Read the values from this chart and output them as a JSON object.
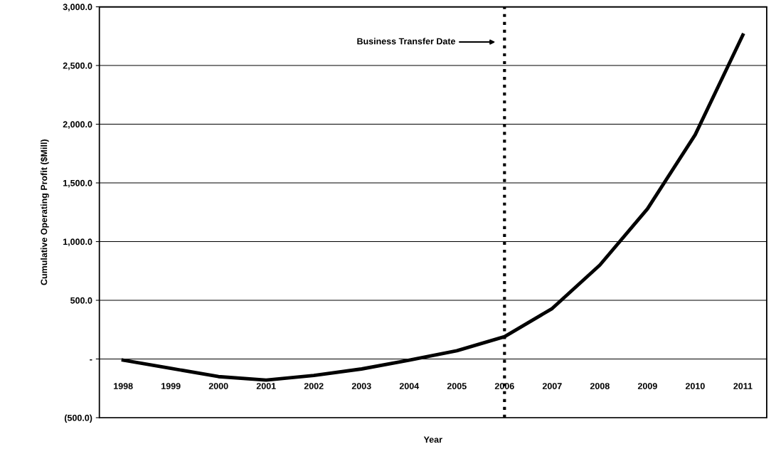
{
  "chart_data": {
    "type": "line",
    "xlabel": "Year",
    "ylabel": "Cumulative Operating Profit ($Mill)",
    "categories": [
      "1998",
      "1999",
      "2000",
      "2001",
      "2002",
      "2003",
      "2004",
      "2005",
      "2006",
      "2007",
      "2008",
      "2009",
      "2010",
      "2011"
    ],
    "series": [
      {
        "color": "#000000",
        "values": [
          -10,
          -80,
          -150,
          -180,
          -140,
          -85,
          -10,
          70,
          190,
          430,
          800,
          1280,
          1910,
          2760
        ]
      }
    ],
    "ylim": [
      -500,
      3000
    ],
    "yticks": [
      {
        "value": -500,
        "label": "(500.0)"
      },
      {
        "value": 0,
        "label": "-"
      },
      {
        "value": 500,
        "label": "500.0"
      },
      {
        "value": 1000,
        "label": "1,000.0"
      },
      {
        "value": 1500,
        "label": "1,500.0"
      },
      {
        "value": 2000,
        "label": "2,000.0"
      },
      {
        "value": 2500,
        "label": "2,500.0"
      },
      {
        "value": 3000,
        "label": "3,000.0"
      }
    ],
    "grid": "y",
    "marker": "none",
    "line_style": "solid",
    "ref_lines": [
      {
        "axis": "x",
        "value": "2006",
        "label": "Business Transfer Date",
        "color": "#000000",
        "line_style": "dotted"
      }
    ]
  }
}
